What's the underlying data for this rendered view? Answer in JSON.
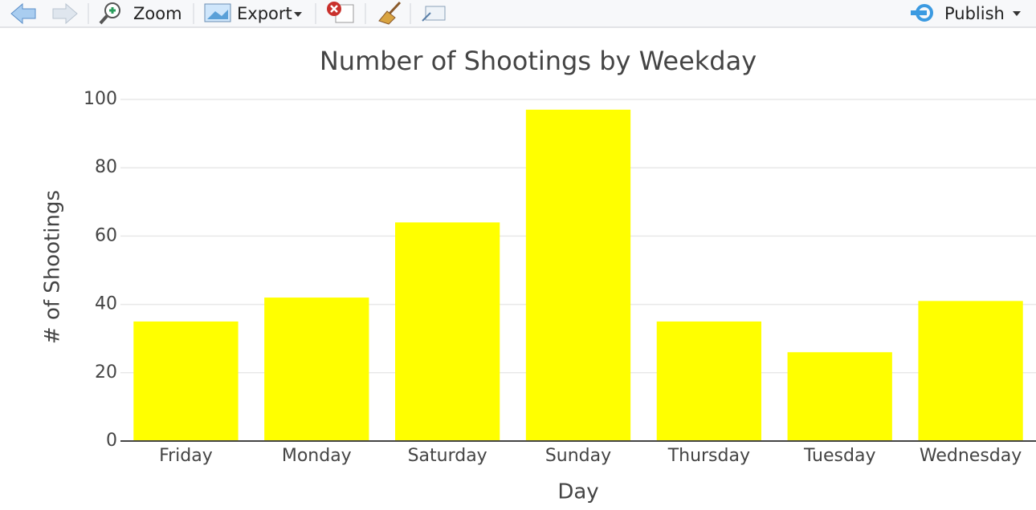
{
  "toolbar": {
    "zoom": "Zoom",
    "export": "Export",
    "publish": "Publish"
  },
  "chart_data": {
    "type": "bar",
    "title": "Number of Shootings by Weekday",
    "x_label": "Day",
    "y_label": "# of Shootings",
    "categories": [
      "Friday",
      "Monday",
      "Saturday",
      "Sunday",
      "Thursday",
      "Tuesday",
      "Wednesday"
    ],
    "values": [
      35,
      42,
      64,
      97,
      35,
      26,
      41
    ],
    "color": "#ffff00",
    "ylim": [
      0,
      100
    ],
    "yticks": [
      0,
      20,
      40,
      60,
      80,
      100
    ],
    "grid": true
  }
}
